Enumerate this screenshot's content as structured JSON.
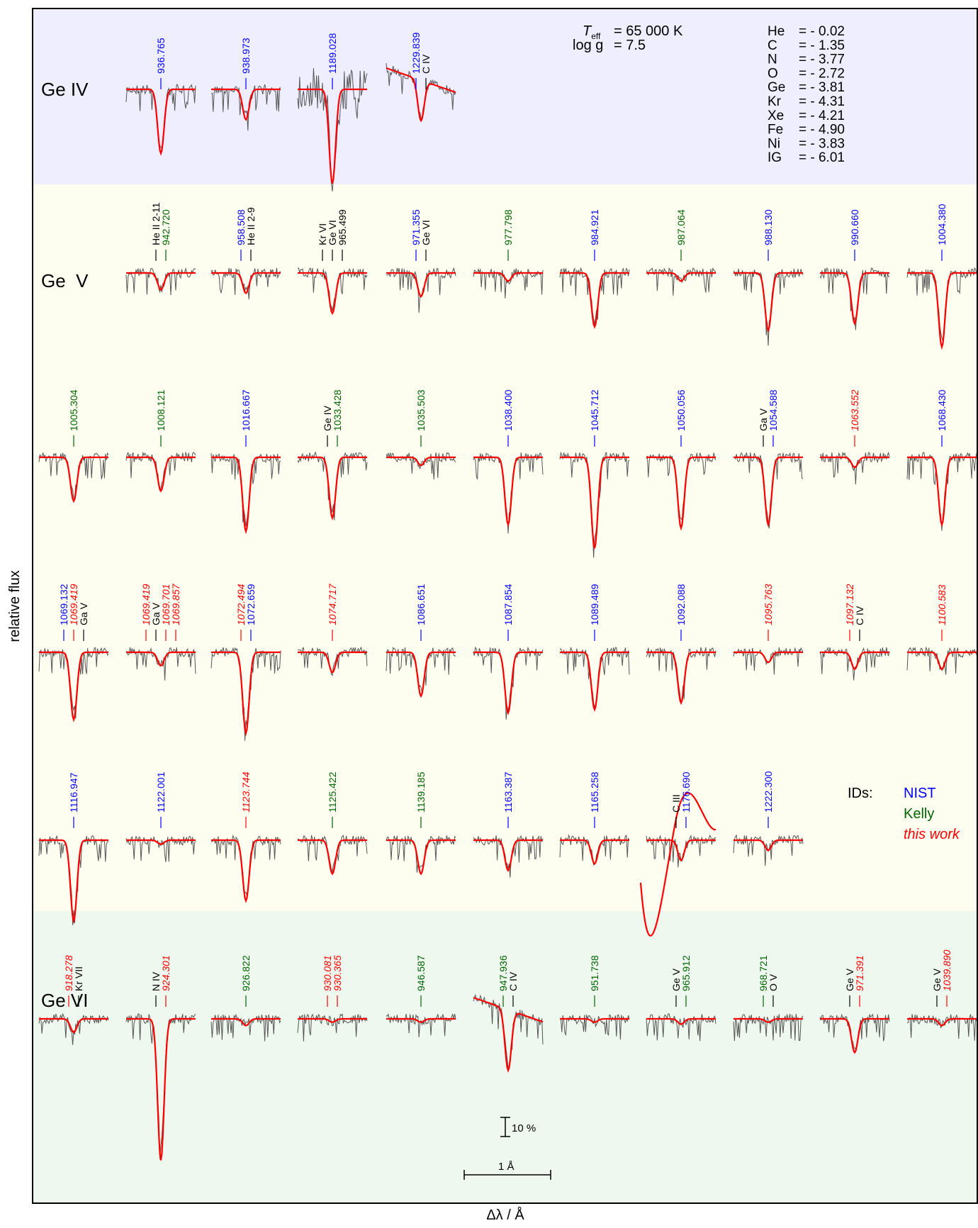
{
  "chart_data": {
    "type": "line",
    "xlabel": "Δλ / Å",
    "ylabel": "relative flux",
    "params": {
      "teff_label": "T",
      "teff_sub": "eff",
      "teff_value": "= 65 000 K",
      "logg_label": "log g",
      "logg_value": "= 7.5"
    },
    "abundances": [
      {
        "el": "He",
        "val": "= - 0.02"
      },
      {
        "el": "C",
        "val": "= - 1.35"
      },
      {
        "el": "N",
        "val": "= - 3.77"
      },
      {
        "el": "O",
        "val": "= - 2.72"
      },
      {
        "el": "Ge",
        "val": "= - 3.81"
      },
      {
        "el": "Kr",
        "val": "= - 4.31"
      },
      {
        "el": "Xe",
        "val": "= - 4.21"
      },
      {
        "el": "Fe",
        "val": "= - 4.90"
      },
      {
        "el": "Ni",
        "val": "= - 3.83"
      },
      {
        "el": "IG",
        "val": "= - 6.01"
      }
    ],
    "legend": {
      "title": "IDs:",
      "items": [
        {
          "label": "NIST",
          "color": "#0000ff"
        },
        {
          "label": "Kelly",
          "color": "#006400"
        },
        {
          "label": "this work",
          "color": "#ff0000",
          "italic": true
        }
      ]
    },
    "scale_bars": {
      "flux": "10 %",
      "wavelength": "1 Å"
    },
    "ions": [
      {
        "name": "Ge IV",
        "background": "#eeeeff"
      },
      {
        "name": "Ge  V",
        "background": "#fdfdf0"
      },
      {
        "name": "Ge VI",
        "background": "#eef8ee"
      }
    ],
    "rows": [
      {
        "ion": 0,
        "panels": [
          {
            "labels": [
              {
                "text": "936.765",
                "src": "nist"
              }
            ],
            "depth": 0.95
          },
          {
            "labels": [
              {
                "text": "938.973",
                "src": "nist"
              }
            ],
            "depth": 0.45
          },
          {
            "labels": [
              {
                "text": "1189.028",
                "src": "nist"
              }
            ],
            "depth": 1.4,
            "noisy": true
          },
          {
            "labels": [
              {
                "text": "1229.839",
                "src": "nist"
              },
              {
                "text": "C IV",
                "src": "other"
              }
            ],
            "depth": 0.6,
            "slope": true
          }
        ]
      },
      {
        "ion": 1,
        "panels": [
          {
            "labels": [
              {
                "text": "He II 2-11",
                "src": "other"
              },
              {
                "text": "942.720",
                "src": "kelly"
              }
            ],
            "depth": 0.25
          },
          {
            "labels": [
              {
                "text": "958.508",
                "src": "nist"
              },
              {
                "text": "He II 2-9",
                "src": "other"
              }
            ],
            "depth": 0.3
          },
          {
            "labels": [
              {
                "text": "Kr VI",
                "src": "other"
              },
              {
                "text": "Ge VI",
                "src": "other"
              },
              {
                "text": "965.499",
                "src": "other"
              }
            ],
            "depth": 0.6
          },
          {
            "labels": [
              {
                "text": "971.355",
                "src": "nist"
              },
              {
                "text": "Ge VI",
                "src": "other"
              }
            ],
            "depth": 0.35
          },
          {
            "labels": [
              {
                "text": "977.798",
                "src": "kelly"
              }
            ],
            "depth": 0.12
          },
          {
            "labels": [
              {
                "text": "984.921",
                "src": "nist"
              }
            ],
            "depth": 0.8
          },
          {
            "labels": [
              {
                "text": "987.064",
                "src": "kelly"
              }
            ],
            "depth": 0.12
          },
          {
            "labels": [
              {
                "text": "988.130",
                "src": "nist"
              }
            ],
            "depth": 0.85
          },
          {
            "labels": [
              {
                "text": "990.660",
                "src": "nist"
              }
            ],
            "depth": 0.75
          },
          {
            "labels": [
              {
                "text": "1004.380",
                "src": "nist"
              }
            ],
            "depth": 1.1
          }
        ]
      },
      {
        "ion": 1,
        "panels": [
          {
            "labels": [
              {
                "text": "1005.304",
                "src": "kelly"
              }
            ],
            "depth": 0.65
          },
          {
            "labels": [
              {
                "text": "1008.121",
                "src": "kelly"
              }
            ],
            "depth": 0.5
          },
          {
            "labels": [
              {
                "text": "1016.667",
                "src": "nist"
              }
            ],
            "depth": 1.1
          },
          {
            "labels": [
              {
                "text": "Ge IV",
                "src": "other"
              },
              {
                "text": "1033.428",
                "src": "kelly"
              }
            ],
            "depth": 0.9
          },
          {
            "labels": [
              {
                "text": "1035.503",
                "src": "kelly"
              }
            ],
            "depth": 0.12
          },
          {
            "labels": [
              {
                "text": "1038.400",
                "src": "nist"
              }
            ],
            "depth": 1.0
          },
          {
            "labels": [
              {
                "text": "1045.712",
                "src": "nist"
              }
            ],
            "depth": 1.35
          },
          {
            "labels": [
              {
                "text": "1050.056",
                "src": "nist"
              }
            ],
            "depth": 1.05
          },
          {
            "labels": [
              {
                "text": "Ga V",
                "src": "other"
              },
              {
                "text": "1054.588",
                "src": "nist"
              }
            ],
            "depth": 1.0
          },
          {
            "labels": [
              {
                "text": "1063.552",
                "src": "work"
              }
            ],
            "depth": 0.15
          },
          {
            "labels": [
              {
                "text": "1068.430",
                "src": "nist"
              }
            ],
            "depth": 1.0
          }
        ]
      },
      {
        "ion": 1,
        "panels": [
          {
            "labels": [
              {
                "text": "1069.132",
                "src": "nist"
              },
              {
                "text": "1069.419",
                "src": "work"
              },
              {
                "text": "Ga V",
                "src": "other"
              }
            ],
            "depth": 1.0
          },
          {
            "labels": [
              {
                "text": "1069.419",
                "src": "work"
              },
              {
                "text": "Ga V",
                "src": "other"
              },
              {
                "text": "1069.701",
                "src": "work"
              },
              {
                "text": "1069.857",
                "src": "work"
              }
            ],
            "depth": 0.2
          },
          {
            "labels": [
              {
                "text": "1072.494",
                "src": "work"
              },
              {
                "text": "1072.659",
                "src": "nist"
              }
            ],
            "depth": 1.2
          },
          {
            "labels": [
              {
                "text": "1074.717",
                "src": "work"
              }
            ],
            "depth": 0.3
          },
          {
            "labels": [
              {
                "text": "1086.651",
                "src": "nist"
              }
            ],
            "depth": 0.65
          },
          {
            "labels": [
              {
                "text": "1087.854",
                "src": "nist"
              }
            ],
            "depth": 0.9
          },
          {
            "labels": [
              {
                "text": "1089.489",
                "src": "nist"
              }
            ],
            "depth": 0.85
          },
          {
            "labels": [
              {
                "text": "1092.088",
                "src": "nist"
              }
            ],
            "depth": 0.75
          },
          {
            "labels": [
              {
                "text": "1095.763",
                "src": "work"
              }
            ],
            "depth": 0.15
          },
          {
            "labels": [
              {
                "text": "1097.132",
                "src": "work"
              },
              {
                "text": "C IV",
                "src": "other"
              }
            ],
            "depth": 0.25
          },
          {
            "labels": [
              {
                "text": "1100.583",
                "src": "work"
              }
            ],
            "depth": 0.25
          }
        ]
      },
      {
        "ion": 1,
        "panels": [
          {
            "labels": [
              {
                "text": "1116.947",
                "src": "nist"
              }
            ],
            "depth": 1.2
          },
          {
            "labels": [
              {
                "text": "1122.001",
                "src": "nist"
              }
            ],
            "depth": 0.06
          },
          {
            "labels": [
              {
                "text": "1123.744",
                "src": "work"
              }
            ],
            "depth": 0.9
          },
          {
            "labels": [
              {
                "text": "1125.422",
                "src": "kelly"
              }
            ],
            "depth": 0.5
          },
          {
            "labels": [
              {
                "text": "1139.185",
                "src": "kelly"
              }
            ],
            "depth": 0.5
          },
          {
            "labels": [
              {
                "text": "1163.387",
                "src": "nist"
              }
            ],
            "depth": 0.45
          },
          {
            "labels": [
              {
                "text": "1165.258",
                "src": "nist"
              }
            ],
            "depth": 0.35
          },
          {
            "labels": [
              {
                "text": "C III",
                "src": "other"
              },
              {
                "text": "1176.690",
                "src": "nist"
              }
            ],
            "depth": 0.3,
            "wing": true
          },
          {
            "labels": [
              {
                "text": "1222.300",
                "src": "nist"
              }
            ],
            "depth": 0.15
          }
        ]
      },
      {
        "ion": 2,
        "panels": [
          {
            "labels": [
              {
                "text": "918.278",
                "src": "work"
              },
              {
                "text": "Kr VII",
                "src": "other"
              }
            ],
            "depth": 0.2
          },
          {
            "labels": [
              {
                "text": "N IV",
                "src": "other"
              },
              {
                "text": "924.301",
                "src": "work"
              }
            ],
            "depth": 2.1
          },
          {
            "labels": [
              {
                "text": "926.822",
                "src": "kelly"
              }
            ],
            "depth": 0.1
          },
          {
            "labels": [
              {
                "text": "930.081",
                "src": "work"
              },
              {
                "text": "930.365",
                "src": "work"
              }
            ],
            "depth": 0.05
          },
          {
            "labels": [
              {
                "text": "946.587",
                "src": "kelly"
              }
            ],
            "depth": 0.05
          },
          {
            "labels": [
              {
                "text": "947.936",
                "src": "kelly"
              },
              {
                "text": "C IV",
                "src": "other"
              }
            ],
            "depth": 0.9,
            "slope": true
          },
          {
            "labels": [
              {
                "text": "951.738",
                "src": "kelly"
              }
            ],
            "depth": 0.05
          },
          {
            "labels": [
              {
                "text": "Ge V",
                "src": "other"
              },
              {
                "text": "965.912",
                "src": "kelly"
              }
            ],
            "depth": 0.08
          },
          {
            "labels": [
              {
                "text": "968.721",
                "src": "kelly"
              },
              {
                "text": "O V",
                "src": "other"
              }
            ],
            "depth": 0.05
          },
          {
            "labels": [
              {
                "text": "Ge V",
                "src": "other"
              },
              {
                "text": "971.391",
                "src": "work"
              }
            ],
            "depth": 0.5
          },
          {
            "labels": [
              {
                "text": "Ge V",
                "src": "other"
              },
              {
                "text": "1039.890",
                "src": "work"
              }
            ],
            "depth": 0.1
          }
        ]
      }
    ]
  }
}
